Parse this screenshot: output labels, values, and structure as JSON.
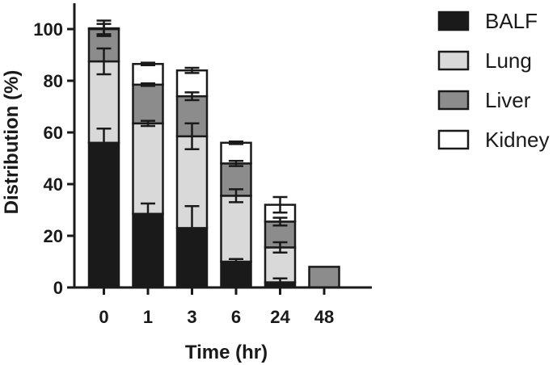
{
  "chart_data": {
    "type": "bar",
    "stacked": true,
    "categories": [
      "0",
      "1",
      "3",
      "6",
      "24",
      "48"
    ],
    "xlabel": "Time (hr)",
    "ylabel": "Distribution (%)",
    "ylim": [
      0,
      110
    ],
    "yticks": [
      0,
      20,
      40,
      60,
      80,
      100
    ],
    "grid": false,
    "legend_position": "right",
    "series": [
      {
        "name": "BALF",
        "color": "#1a1a1a",
        "values": [
          56,
          28.5,
          23,
          10,
          2,
          0
        ],
        "errors": [
          5.5,
          4,
          8.5,
          1,
          1.5,
          0
        ]
      },
      {
        "name": "Lung",
        "color": "#d9d9d9",
        "values": [
          31.5,
          35,
          35.5,
          25.5,
          13.5,
          0
        ],
        "errors": [
          5,
          1,
          5,
          2.5,
          2,
          0
        ]
      },
      {
        "name": "Liver",
        "color": "#8c8c8c",
        "values": [
          12.5,
          15,
          15.5,
          12.5,
          10,
          8
        ],
        "errors": [
          2,
          0.5,
          1.5,
          1,
          1.5,
          0
        ]
      },
      {
        "name": "Kidney",
        "color": "#ffffff",
        "values": [
          0.3,
          8,
          10,
          8,
          6.5,
          0
        ],
        "errors": [
          3,
          0.5,
          1,
          0.5,
          3,
          0
        ]
      }
    ]
  }
}
